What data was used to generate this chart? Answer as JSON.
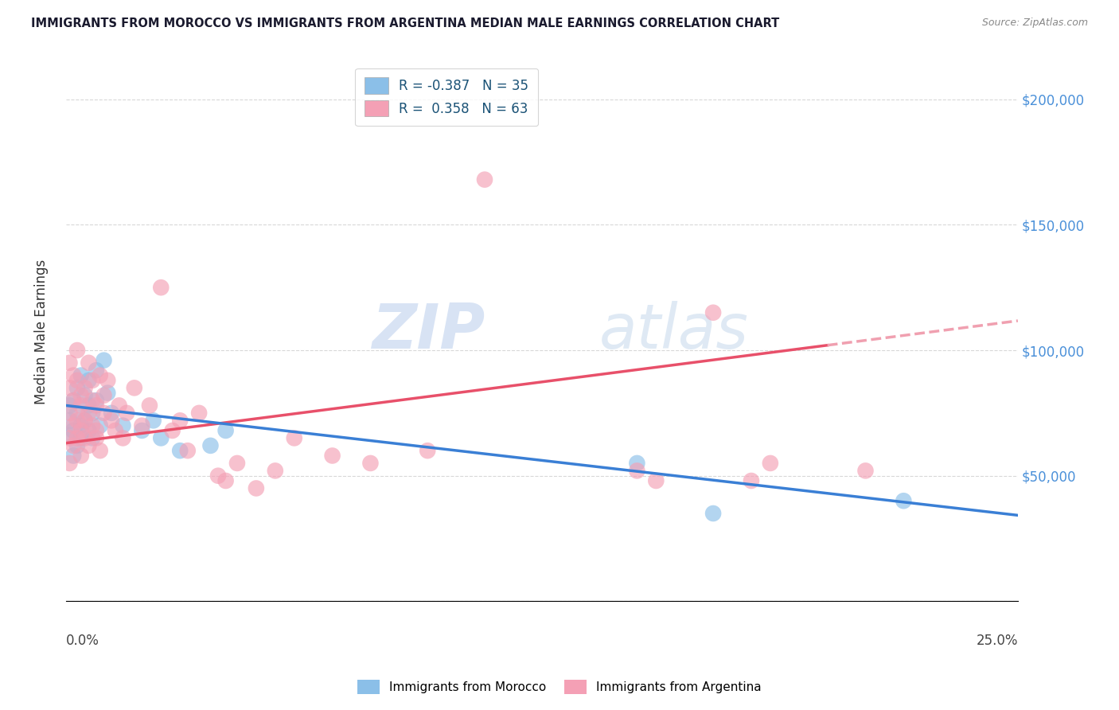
{
  "title": "IMMIGRANTS FROM MOROCCO VS IMMIGRANTS FROM ARGENTINA MEDIAN MALE EARNINGS CORRELATION CHART",
  "source": "Source: ZipAtlas.com",
  "ylabel": "Median Male Earnings",
  "y_ticks": [
    0,
    50000,
    100000,
    150000,
    200000
  ],
  "y_tick_labels": [
    "",
    "$50,000",
    "$100,000",
    "$150,000",
    "$200,000"
  ],
  "xlim": [
    0.0,
    0.25
  ],
  "ylim": [
    10000,
    215000
  ],
  "morocco_R": -0.387,
  "morocco_N": 35,
  "argentina_R": 0.358,
  "argentina_N": 63,
  "morocco_color": "#8bbfe8",
  "argentina_color": "#f4a0b5",
  "morocco_line_color": "#3a7fd5",
  "argentina_line_color": "#e8506a",
  "argentina_dash_color": "#f0a0b0",
  "background_color": "#ffffff",
  "grid_color": "#d8d8d8",
  "watermark_color": "#ccd8f0",
  "morocco_x": [
    0.001,
    0.001,
    0.001,
    0.002,
    0.002,
    0.002,
    0.003,
    0.003,
    0.003,
    0.004,
    0.004,
    0.004,
    0.005,
    0.005,
    0.006,
    0.006,
    0.006,
    0.007,
    0.007,
    0.008,
    0.008,
    0.009,
    0.01,
    0.011,
    0.012,
    0.015,
    0.02,
    0.023,
    0.025,
    0.03,
    0.038,
    0.042,
    0.15,
    0.17,
    0.22
  ],
  "morocco_y": [
    72000,
    66000,
    78000,
    80000,
    68000,
    58000,
    75000,
    85000,
    62000,
    70000,
    90000,
    65000,
    82000,
    72000,
    78000,
    68000,
    88000,
    75000,
    65000,
    80000,
    92000,
    70000,
    96000,
    83000,
    75000,
    70000,
    68000,
    72000,
    65000,
    60000,
    62000,
    68000,
    55000,
    35000,
    40000
  ],
  "argentina_x": [
    0.001,
    0.001,
    0.001,
    0.001,
    0.001,
    0.002,
    0.002,
    0.002,
    0.002,
    0.003,
    0.003,
    0.003,
    0.003,
    0.004,
    0.004,
    0.004,
    0.004,
    0.005,
    0.005,
    0.005,
    0.006,
    0.006,
    0.006,
    0.007,
    0.007,
    0.007,
    0.008,
    0.008,
    0.008,
    0.009,
    0.009,
    0.01,
    0.01,
    0.011,
    0.012,
    0.013,
    0.014,
    0.015,
    0.016,
    0.018,
    0.02,
    0.022,
    0.025,
    0.028,
    0.03,
    0.032,
    0.035,
    0.04,
    0.042,
    0.045,
    0.05,
    0.055,
    0.06,
    0.07,
    0.08,
    0.095,
    0.11,
    0.15,
    0.155,
    0.17,
    0.18,
    0.185,
    0.21
  ],
  "argentina_y": [
    75000,
    85000,
    65000,
    95000,
    55000,
    80000,
    70000,
    90000,
    62000,
    72000,
    88000,
    65000,
    100000,
    82000,
    68000,
    78000,
    58000,
    85000,
    72000,
    65000,
    95000,
    75000,
    62000,
    88000,
    70000,
    80000,
    78000,
    65000,
    68000,
    90000,
    60000,
    82000,
    75000,
    88000,
    72000,
    68000,
    78000,
    65000,
    75000,
    85000,
    70000,
    78000,
    125000,
    68000,
    72000,
    60000,
    75000,
    50000,
    48000,
    55000,
    45000,
    52000,
    65000,
    58000,
    55000,
    60000,
    168000,
    52000,
    48000,
    115000,
    48000,
    55000,
    52000
  ],
  "morocco_trend_intercept": 78000,
  "morocco_trend_slope": -175000,
  "argentina_trend_intercept": 63000,
  "argentina_trend_slope": 195000
}
